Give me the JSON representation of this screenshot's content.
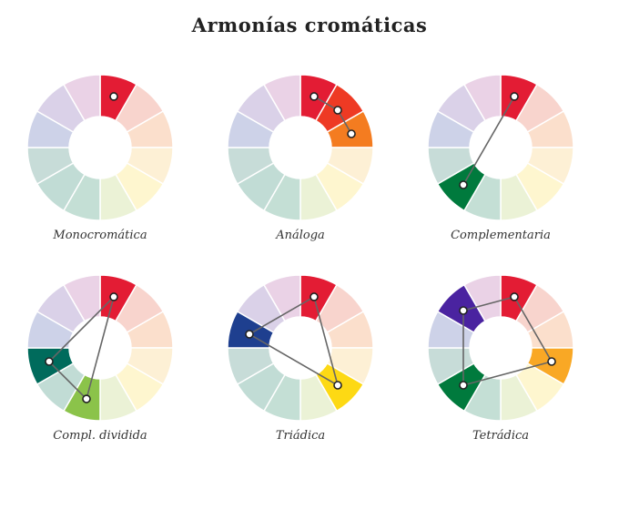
{
  "title": "Armonías cromáticas",
  "colors": {
    "full": [
      "#e31c34",
      "#ee3a24",
      "#f47c20",
      "#f9a825",
      "#fdd914",
      "#cde8a4",
      "#8bc34a",
      "#007a3d",
      "#006b5c",
      "#1e3f8f",
      "#4a23a0",
      "#9b4fa0"
    ],
    "pale": [
      "#e31c34",
      "#f8d4cd",
      "#fbdfcc",
      "#fdf0d5",
      "#fef6cf",
      "#ebf2d6",
      "#c4dfd5",
      "#c1dcd5",
      "#c7dcd8",
      "#cdd2e8",
      "#dad1e8",
      "#ead2e6"
    ],
    "line": "#666666",
    "marker": "#e31c34"
  },
  "wheels": [
    {
      "name": "Monocromática",
      "highlighted": [
        0
      ],
      "markers": [
        0
      ],
      "connections": []
    },
    {
      "name": "Análoga",
      "highlighted": [
        0,
        1,
        2
      ],
      "markers": [
        0,
        1,
        2
      ],
      "connections": [
        [
          0,
          1
        ],
        [
          1,
          2
        ]
      ]
    },
    {
      "name": "Complementaria",
      "highlighted": [
        0,
        7
      ],
      "markers": [
        0,
        7
      ],
      "connections": [
        [
          0,
          7
        ]
      ]
    },
    {
      "name": "Compl. dividida",
      "highlighted": [
        0,
        6,
        8
      ],
      "markers": [
        0,
        6,
        8
      ],
      "connections": [
        [
          0,
          6
        ],
        [
          0,
          8
        ],
        [
          6,
          8
        ]
      ]
    },
    {
      "name": "Triádica",
      "highlighted": [
        0,
        4,
        9
      ],
      "markers": [
        0,
        4,
        9
      ],
      "connections": [
        [
          0,
          4
        ],
        [
          4,
          9
        ],
        [
          9,
          0
        ]
      ]
    },
    {
      "name": "Tetrádica",
      "highlighted": [
        0,
        3,
        7,
        10
      ],
      "markers": [
        0,
        3,
        7,
        10
      ],
      "connections": [
        [
          0,
          3
        ],
        [
          3,
          7
        ],
        [
          7,
          10
        ],
        [
          10,
          0
        ]
      ]
    }
  ]
}
